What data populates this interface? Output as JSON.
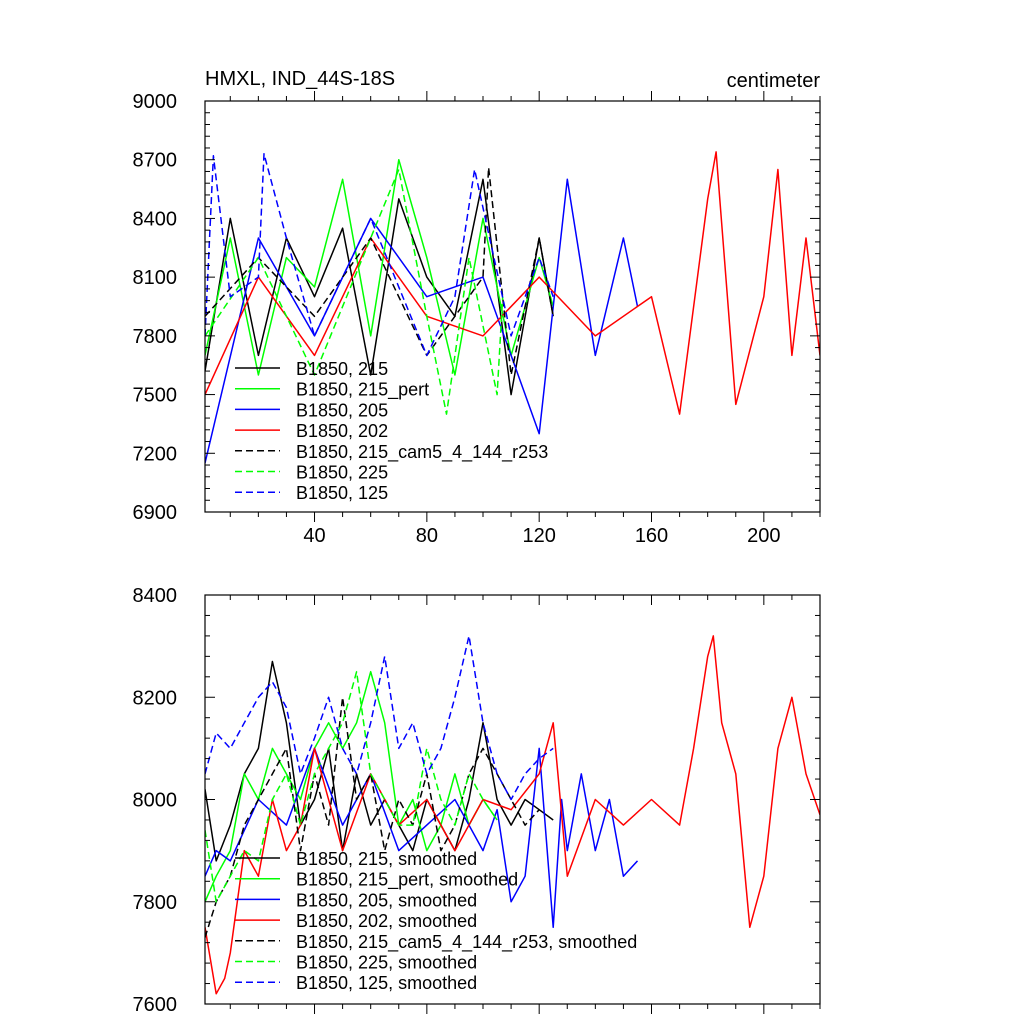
{
  "colors": {
    "black": "#000000",
    "green": "#00ff00",
    "blue": "#0000ff",
    "red": "#ff0000"
  },
  "chart_data": [
    {
      "type": "line",
      "title": "HMXL, IND_44S-18S",
      "units": "centimeter",
      "xlabel": "",
      "ylabel": "",
      "xlim": [
        1,
        220
      ],
      "ylim": [
        6900,
        9000
      ],
      "xticks": [
        40,
        80,
        120,
        160,
        200
      ],
      "yticks": [
        6900,
        7200,
        7500,
        7800,
        8100,
        8400,
        8700,
        9000
      ],
      "legend_position": "lower-left",
      "grid": false,
      "series": [
        {
          "name": "B1850, 215",
          "color": "#000000",
          "dash": "solid",
          "x": [
            1,
            10,
            20,
            30,
            40,
            50,
            60,
            70,
            80,
            90,
            100,
            110,
            120,
            125
          ],
          "values": [
            7620,
            8400,
            7700,
            8300,
            8000,
            8350,
            7600,
            8500,
            8100,
            7900,
            8600,
            7500,
            8300,
            7900
          ]
        },
        {
          "name": "B1850, 215_pert",
          "color": "#00ff00",
          "dash": "solid",
          "x": [
            1,
            10,
            20,
            30,
            40,
            50,
            60,
            70,
            80,
            90,
            100,
            110,
            120,
            125
          ],
          "values": [
            7700,
            8300,
            7600,
            8200,
            8050,
            8600,
            7800,
            8700,
            8200,
            7600,
            8400,
            7700,
            8200,
            7950
          ]
        },
        {
          "name": "B1850, 205",
          "color": "#0000ff",
          "dash": "solid",
          "x": [
            1,
            20,
            40,
            60,
            80,
            100,
            120,
            130,
            140,
            150,
            155
          ],
          "values": [
            7150,
            8300,
            7800,
            8400,
            8000,
            8100,
            7300,
            8600,
            7700,
            8300,
            7950
          ]
        },
        {
          "name": "B1850, 202",
          "color": "#ff0000",
          "dash": "solid",
          "x": [
            1,
            20,
            40,
            60,
            80,
            100,
            120,
            140,
            160,
            170,
            180,
            183,
            190,
            200,
            205,
            210,
            215,
            220
          ],
          "values": [
            7500,
            8100,
            7700,
            8300,
            7900,
            7800,
            8100,
            7800,
            8000,
            7400,
            8500,
            8740,
            7450,
            8000,
            8650,
            7700,
            8300,
            7700
          ]
        },
        {
          "name": "B1850, 215_cam5_4_144_r253",
          "color": "#000000",
          "dash": "dashed",
          "x": [
            1,
            20,
            40,
            60,
            80,
            100,
            102,
            110,
            120,
            125
          ],
          "values": [
            7900,
            8200,
            7900,
            8300,
            7700,
            8100,
            8660,
            7600,
            8300,
            7900
          ]
        },
        {
          "name": "B1850, 225",
          "color": "#00ff00",
          "dash": "dashed",
          "x": [
            1,
            20,
            40,
            60,
            70,
            80,
            87,
            95,
            105,
            107
          ],
          "values": [
            7800,
            8200,
            7600,
            8300,
            8650,
            7900,
            7400,
            8200,
            7500,
            8000
          ]
        },
        {
          "name": "B1850, 125",
          "color": "#0000ff",
          "dash": "dashed",
          "x": [
            1,
            4,
            10,
            20,
            22,
            30,
            40,
            60,
            80,
            90,
            97,
            110,
            120,
            125
          ],
          "values": [
            7800,
            8720,
            8000,
            8100,
            8730,
            8300,
            7800,
            8400,
            7700,
            8000,
            8650,
            7800,
            8200,
            8000
          ]
        }
      ]
    },
    {
      "type": "line",
      "title": "",
      "xlabel": "",
      "ylabel": "",
      "xlim": [
        1,
        220
      ],
      "ylim": [
        7600,
        8400
      ],
      "xticks": [
        40,
        80,
        120,
        160,
        200
      ],
      "yticks": [
        7600,
        7800,
        8000,
        8200,
        8400
      ],
      "legend_position": "lower-left",
      "grid": false,
      "series": [
        {
          "name": "B1850, 215, smoothed",
          "color": "#000000",
          "dash": "solid",
          "x": [
            1,
            5,
            10,
            15,
            20,
            25,
            30,
            35,
            40,
            45,
            50,
            55,
            60,
            65,
            70,
            75,
            80,
            85,
            90,
            95,
            100,
            105,
            110,
            115,
            120,
            125
          ],
          "values": [
            8020,
            7880,
            7950,
            8050,
            8100,
            8270,
            8150,
            7950,
            8000,
            8100,
            7900,
            8050,
            7950,
            8000,
            7950,
            7900,
            8000,
            7950,
            7900,
            8000,
            8150,
            8000,
            7950,
            8000,
            7980,
            7960
          ]
        },
        {
          "name": "B1850, 215_pert, smoothed",
          "color": "#00ff00",
          "dash": "solid",
          "x": [
            1,
            5,
            10,
            15,
            20,
            25,
            30,
            35,
            40,
            45,
            50,
            55,
            60,
            65,
            70,
            75,
            80,
            85,
            90,
            95,
            100,
            105
          ],
          "values": [
            7800,
            7850,
            7900,
            8050,
            8000,
            8100,
            8050,
            8000,
            8100,
            8150,
            8100,
            8150,
            8250,
            8150,
            7950,
            8000,
            7900,
            7950,
            8050,
            7950,
            8000,
            7960
          ]
        },
        {
          "name": "B1850, 205, smoothed",
          "color": "#0000ff",
          "dash": "solid",
          "x": [
            1,
            5,
            10,
            20,
            30,
            40,
            50,
            60,
            70,
            80,
            90,
            100,
            105,
            110,
            115,
            120,
            125,
            128,
            130,
            135,
            140,
            145,
            150,
            155
          ],
          "values": [
            7850,
            7900,
            7880,
            8000,
            7950,
            8100,
            7950,
            8050,
            7900,
            7950,
            8000,
            7900,
            7980,
            7800,
            7850,
            8100,
            7750,
            8000,
            7900,
            8050,
            7900,
            8000,
            7850,
            7880
          ]
        },
        {
          "name": "B1850, 202, smoothed",
          "color": "#ff0000",
          "dash": "solid",
          "x": [
            1,
            5,
            8,
            10,
            15,
            20,
            25,
            30,
            35,
            40,
            50,
            60,
            70,
            80,
            90,
            100,
            110,
            120,
            125,
            130,
            140,
            150,
            160,
            170,
            175,
            180,
            182,
            185,
            190,
            195,
            200,
            205,
            210,
            215,
            220
          ],
          "values": [
            7750,
            7620,
            7650,
            7700,
            7900,
            7850,
            8000,
            7900,
            7950,
            8100,
            7900,
            8050,
            7950,
            8000,
            7900,
            8000,
            7980,
            8050,
            8150,
            7850,
            8000,
            7950,
            8000,
            7950,
            8100,
            8280,
            8320,
            8150,
            8050,
            7750,
            7850,
            8100,
            8200,
            8050,
            7970
          ]
        },
        {
          "name": "B1850, 215_cam5_4_144_r253, smoothed",
          "color": "#000000",
          "dash": "dashed",
          "x": [
            1,
            5,
            10,
            15,
            20,
            25,
            30,
            35,
            40,
            45,
            50,
            55,
            60,
            65,
            70,
            75,
            80,
            85,
            90,
            95,
            100,
            105,
            110,
            115,
            120
          ],
          "values": [
            7730,
            7800,
            7850,
            7950,
            8000,
            8050,
            8100,
            7900,
            8050,
            7950,
            8200,
            8000,
            8050,
            7900,
            8000,
            7950,
            8050,
            7900,
            7950,
            8050,
            8100,
            8050,
            8000,
            7950,
            7980
          ]
        },
        {
          "name": "B1850, 225, smoothed",
          "color": "#00ff00",
          "dash": "dashed",
          "x": [
            1,
            5,
            10,
            15,
            20,
            25,
            30,
            35,
            40,
            45,
            50,
            55,
            60,
            65,
            70,
            75,
            80,
            85,
            90,
            95,
            100,
            105
          ],
          "values": [
            7940,
            7800,
            7850,
            7900,
            7880,
            8000,
            8050,
            7950,
            8050,
            8100,
            8150,
            8250,
            8050,
            8000,
            7950,
            7950,
            8100,
            8000,
            7950,
            8050,
            8000,
            7960
          ]
        },
        {
          "name": "B1850, 125, smoothed",
          "color": "#0000ff",
          "dash": "dashed",
          "x": [
            1,
            5,
            10,
            15,
            20,
            25,
            30,
            35,
            40,
            45,
            50,
            55,
            60,
            65,
            70,
            75,
            80,
            85,
            90,
            95,
            100,
            105,
            110,
            115,
            120,
            125
          ],
          "values": [
            8050,
            8130,
            8100,
            8150,
            8200,
            8230,
            8180,
            8050,
            8120,
            8200,
            8100,
            8050,
            8150,
            8280,
            8100,
            8150,
            8050,
            8100,
            8200,
            8320,
            8150,
            8050,
            8000,
            8050,
            8080,
            8100
          ]
        }
      ]
    }
  ]
}
